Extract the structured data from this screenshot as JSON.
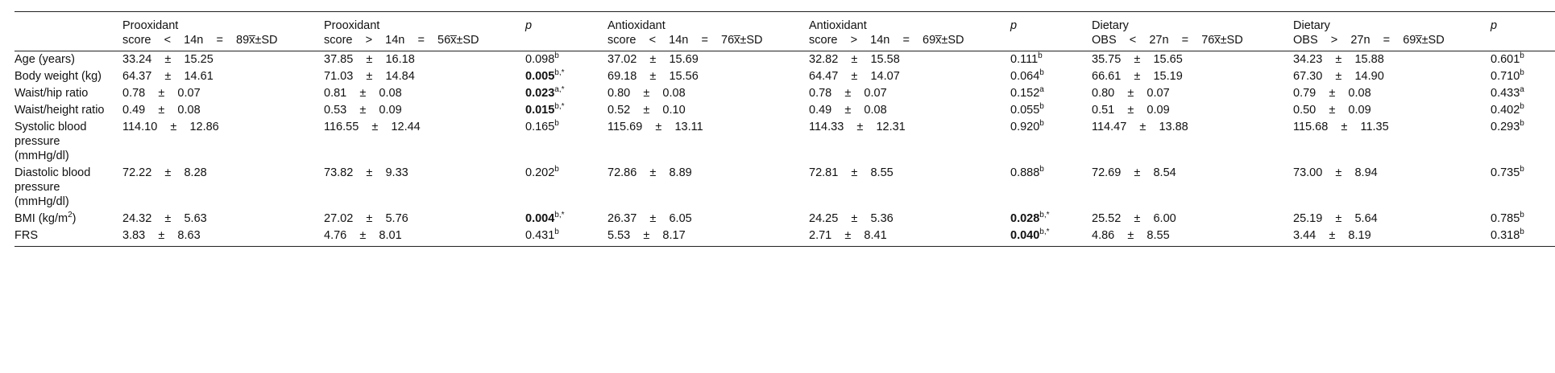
{
  "headers": [
    {
      "line1": "",
      "line2": ""
    },
    {
      "line1": "Prooxidant",
      "line2": "score    <    14n    =    89x̅±SD"
    },
    {
      "line1": "Prooxidant",
      "line2": "score    >    14n    =    56x̅±SD"
    },
    {
      "line1": "p",
      "line2": ""
    },
    {
      "line1": "Antioxidant",
      "line2": "score    <    14n    =    76x̅±SD"
    },
    {
      "line1": "Antioxidant",
      "line2": "score    >    14n    =    69x̅±SD"
    },
    {
      "line1": "p",
      "line2": ""
    },
    {
      "line1": "Dietary",
      "line2": "OBS    <    27n    =    76x̅±SD"
    },
    {
      "line1": "Dietary",
      "line2": "OBS    >    27n    =    69x̅±SD"
    },
    {
      "line1": "p",
      "line2": ""
    }
  ],
  "rows": [
    {
      "label": "Age (years)",
      "c1": "33.24    ±    15.25",
      "c2": "37.85    ±    16.18",
      "p1": {
        "v": "0.098",
        "sup": "b",
        "bold": false
      },
      "c3": "37.02    ±    15.69",
      "c4": "32.82    ±    15.58",
      "p2": {
        "v": "0.111",
        "sup": "b",
        "bold": false
      },
      "c5": "35.75    ±    15.65",
      "c6": "34.23    ±    15.88",
      "p3": {
        "v": "0.601",
        "sup": "b",
        "bold": false
      }
    },
    {
      "label": "Body weight (kg)",
      "c1": "64.37    ±    14.61",
      "c2": "71.03    ±    14.84",
      "p1": {
        "v": "0.005",
        "sup": "b,*",
        "bold": true
      },
      "c3": "69.18    ±    15.56",
      "c4": "64.47    ±    14.07",
      "p2": {
        "v": "0.064",
        "sup": "b",
        "bold": false
      },
      "c5": "66.61    ±    15.19",
      "c6": "67.30    ±    14.90",
      "p3": {
        "v": "0.710",
        "sup": "b",
        "bold": false
      }
    },
    {
      "label": "Waist/hip ratio",
      "c1": "0.78    ±    0.07",
      "c2": "0.81    ±    0.08",
      "p1": {
        "v": "0.023",
        "sup": "a,*",
        "bold": true
      },
      "c3": "0.80    ±    0.08",
      "c4": "0.78    ±    0.07",
      "p2": {
        "v": "0.152",
        "sup": "a",
        "bold": false
      },
      "c5": "0.80    ±    0.07",
      "c6": "0.79    ±    0.08",
      "p3": {
        "v": "0.433",
        "sup": "a",
        "bold": false
      }
    },
    {
      "label": "Waist/height ratio",
      "c1": "0.49    ±    0.08",
      "c2": "0.53    ±    0.09",
      "p1": {
        "v": "0.015",
        "sup": "b,*",
        "bold": true
      },
      "c3": "0.52    ±    0.10",
      "c4": "0.49    ±    0.08",
      "p2": {
        "v": "0.055",
        "sup": "b",
        "bold": false
      },
      "c5": "0.51    ±    0.09",
      "c6": "0.50    ±    0.09",
      "p3": {
        "v": "0.402",
        "sup": "b",
        "bold": false
      }
    },
    {
      "label": "Systolic blood pressure (mmHg/dl)",
      "c1": "114.10    ±    12.86",
      "c2": "116.55    ±    12.44",
      "p1": {
        "v": "0.165",
        "sup": "b",
        "bold": false
      },
      "c3": "115.69    ±    13.11",
      "c4": "114.33    ±    12.31",
      "p2": {
        "v": "0.920",
        "sup": "b",
        "bold": false
      },
      "c5": "114.47    ±    13.88",
      "c6": "115.68    ±    11.35",
      "p3": {
        "v": "0.293",
        "sup": "b",
        "bold": false
      }
    },
    {
      "label": "Diastolic blood pressure (mmHg/dl)",
      "c1": "72.22    ±    8.28",
      "c2": "73.82    ±    9.33",
      "p1": {
        "v": "0.202",
        "sup": "b",
        "bold": false
      },
      "c3": "72.86    ±    8.89",
      "c4": "72.81    ±    8.55",
      "p2": {
        "v": "0.888",
        "sup": "b",
        "bold": false
      },
      "c5": "72.69    ±    8.54",
      "c6": "73.00    ±    8.94",
      "p3": {
        "v": "0.735",
        "sup": "b",
        "bold": false
      }
    },
    {
      "label": "BMI (kg/m",
      "label_sup": "2",
      "label_tail": ")",
      "c1": "24.32    ±    5.63",
      "c2": "27.02    ±    5.76",
      "p1": {
        "v": "0.004",
        "sup": "b,*",
        "bold": true
      },
      "c3": "26.37    ±    6.05",
      "c4": "24.25    ±    5.36",
      "p2": {
        "v": "0.028",
        "sup": "b,*",
        "bold": true
      },
      "c5": "25.52    ±    6.00",
      "c6": "25.19    ±    5.64",
      "p3": {
        "v": "0.785",
        "sup": "b",
        "bold": false
      }
    },
    {
      "label": "FRS",
      "c1": "3.83    ±    8.63",
      "c2": "4.76    ±    8.01",
      "p1": {
        "v": "0.431",
        "sup": "b",
        "bold": false
      },
      "c3": "5.53    ±    8.17",
      "c4": "2.71    ±    8.41",
      "p2": {
        "v": "0.040",
        "sup": "b,*",
        "bold": true
      },
      "c5": "4.86    ±    8.55",
      "c6": "3.44    ±    8.19",
      "p3": {
        "v": "0.318",
        "sup": "b",
        "bold": false
      }
    }
  ]
}
